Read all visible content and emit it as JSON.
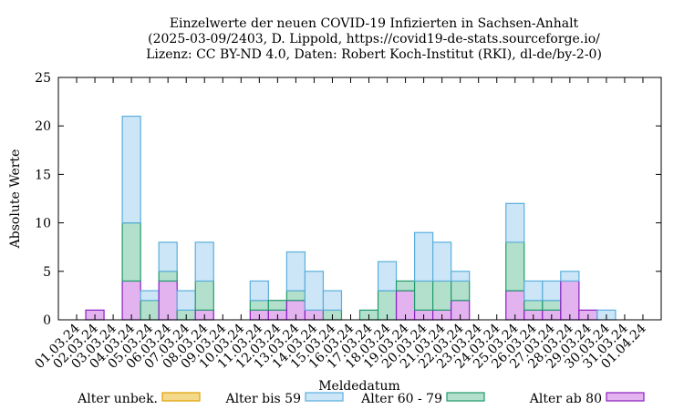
{
  "chart_data": {
    "type": "bar",
    "stacked": true,
    "title_lines": [
      "Einzelwerte der neuen COVID-19 Infizierten in Sachsen-Anhalt",
      "(2025-03-09/2403, D. Lippold, https://covid19-de-stats.sourceforge.io/",
      "Lizenz: CC BY-ND 4.0, Daten: Robert Koch-Institut (RKI), dl-de/by-2-0)"
    ],
    "xlabel": "Meldedatum",
    "ylabel": "Absolute Werte",
    "ylim": [
      0,
      25
    ],
    "yticks": [
      0,
      5,
      10,
      15,
      20,
      25
    ],
    "grid": false,
    "legend_position": "bottom",
    "categories": [
      "01.03.24",
      "02.03.24",
      "03.03.24",
      "04.03.24",
      "05.03.24",
      "06.03.24",
      "07.03.24",
      "08.03.24",
      "09.03.24",
      "10.03.24",
      "11.03.24",
      "12.03.24",
      "13.03.24",
      "14.03.24",
      "15.03.24",
      "16.03.24",
      "17.03.24",
      "18.03.24",
      "19.03.24",
      "20.03.24",
      "21.03.24",
      "22.03.24",
      "23.03.24",
      "24.03.24",
      "25.03.24",
      "26.03.24",
      "27.03.24",
      "28.03.24",
      "29.03.24",
      "30.03.24",
      "31.03.24",
      "01.04.24"
    ],
    "series": [
      {
        "name": "Alter unbek.",
        "color": "#f5d98b",
        "stroke": "#e0a100",
        "values": [
          0,
          0,
          0,
          0,
          0,
          0,
          0,
          0,
          0,
          0,
          0,
          0,
          0,
          0,
          0,
          0,
          0,
          0,
          0,
          0,
          0,
          0,
          0,
          0,
          0,
          0,
          0,
          0,
          0,
          0,
          0,
          0
        ]
      },
      {
        "name": "Alter bis 59",
        "color": "#cce6f8",
        "stroke": "#5aaedc",
        "values": [
          0,
          0,
          0,
          11,
          1,
          3,
          2,
          4,
          0,
          0,
          2,
          0,
          4,
          4,
          2,
          0,
          0,
          3,
          0,
          5,
          4,
          1,
          0,
          0,
          4,
          2,
          2,
          1,
          0,
          1,
          0,
          0
        ]
      },
      {
        "name": "Alter 60 - 79",
        "color": "#b3e0cc",
        "stroke": "#1f9a6b",
        "values": [
          0,
          0,
          0,
          6,
          2,
          1,
          1,
          3,
          0,
          0,
          1,
          1,
          1,
          0,
          1,
          0,
          1,
          3,
          1,
          3,
          3,
          2,
          0,
          0,
          5,
          1,
          1,
          0,
          0,
          0,
          0,
          0
        ]
      },
      {
        "name": "Alter ab 80",
        "color": "#e3b3f0",
        "stroke": "#8a1fc0",
        "values": [
          0,
          1,
          0,
          4,
          0,
          4,
          0,
          1,
          0,
          0,
          1,
          1,
          2,
          1,
          0,
          0,
          0,
          0,
          3,
          1,
          1,
          2,
          0,
          0,
          3,
          1,
          1,
          4,
          1,
          0,
          0,
          0
        ]
      }
    ]
  }
}
